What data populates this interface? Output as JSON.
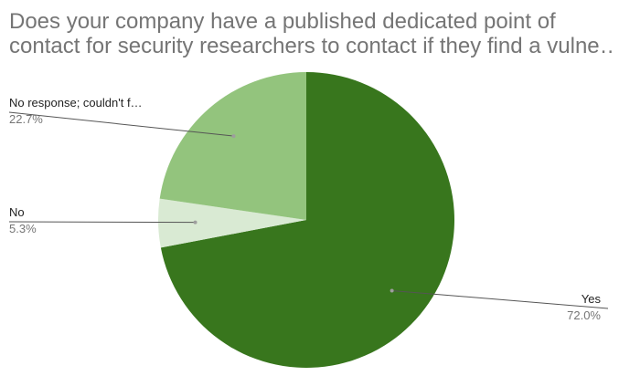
{
  "title_lines": [
    "Does your company have a published dedicated point of",
    "contact for security researchers to contact if they find a vulne…"
  ],
  "chart_data": {
    "type": "pie",
    "title": "Does your company have a published dedicated point of contact for security researchers to contact if they find a vulne…",
    "slices": [
      {
        "label": "Yes",
        "value": 72.0,
        "percent_label": "72.0%",
        "color": "#38761d",
        "label_side": "right"
      },
      {
        "label": "No",
        "value": 5.3,
        "percent_label": "5.3%",
        "color": "#d9ead3",
        "label_side": "left"
      },
      {
        "label": "No response; couldn't f…",
        "value": 22.7,
        "percent_label": "22.7%",
        "color": "#93c47d",
        "label_side": "left"
      }
    ],
    "start_angle": "12 o'clock",
    "direction": "clockwise",
    "legend": "none"
  }
}
